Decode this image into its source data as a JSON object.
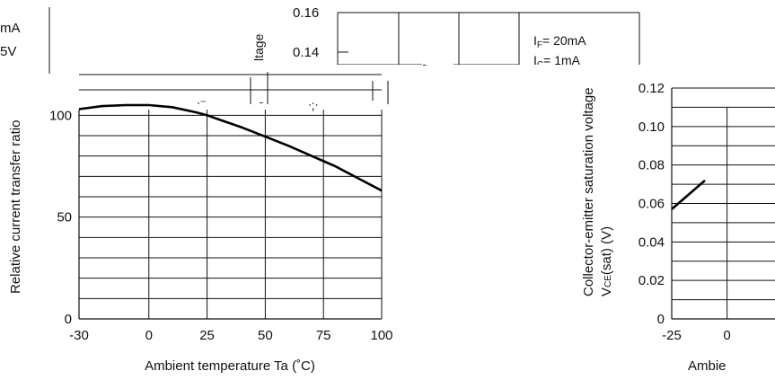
{
  "chart_data": [
    {
      "type": "line",
      "xlabel": "Ambient temperature Ta (˚C)",
      "ylabel": "Relative current transfer ratio",
      "x_ticks": [
        "-30",
        "0",
        "25",
        "50",
        "75",
        "100"
      ],
      "y_ticks": [
        "0",
        "50",
        "100"
      ],
      "xlim": [
        -30,
        100
      ],
      "ylim": [
        0,
        120
      ],
      "grid": true,
      "series": [
        {
          "x": [
            -30,
            -20,
            -10,
            0,
            10,
            20,
            25,
            30,
            40,
            50,
            60,
            70,
            80,
            90,
            100
          ],
          "y": [
            103,
            104.5,
            105,
            105,
            104,
            101.5,
            100,
            98,
            94,
            89.5,
            85,
            80,
            75,
            69,
            63
          ]
        }
      ]
    },
    {
      "type": "line",
      "ylabel": "Collector-emitter saturation voltage VCE(sat) (V)",
      "xlabel": "Ambie",
      "x_ticks": [
        "-25",
        "0"
      ],
      "y_ticks": [
        "0",
        "0.02",
        "0.04",
        "0.06",
        "0.08",
        "0.10",
        "0.12"
      ],
      "ylim": [
        0,
        0.12
      ],
      "grid": true,
      "series": [
        {
          "x": [
            -25,
            -10
          ],
          "y": [
            0.057,
            0.072
          ]
        }
      ]
    }
  ],
  "legend_left": {
    "line1": "mA",
    "line2": "5V"
  },
  "behind_chart": {
    "y_ticks": [
      "0.16",
      "0.14"
    ],
    "conditions": [
      "I_F= 20mA",
      "I_C= 1mA"
    ],
    "rotated_fragment": "ltage"
  }
}
